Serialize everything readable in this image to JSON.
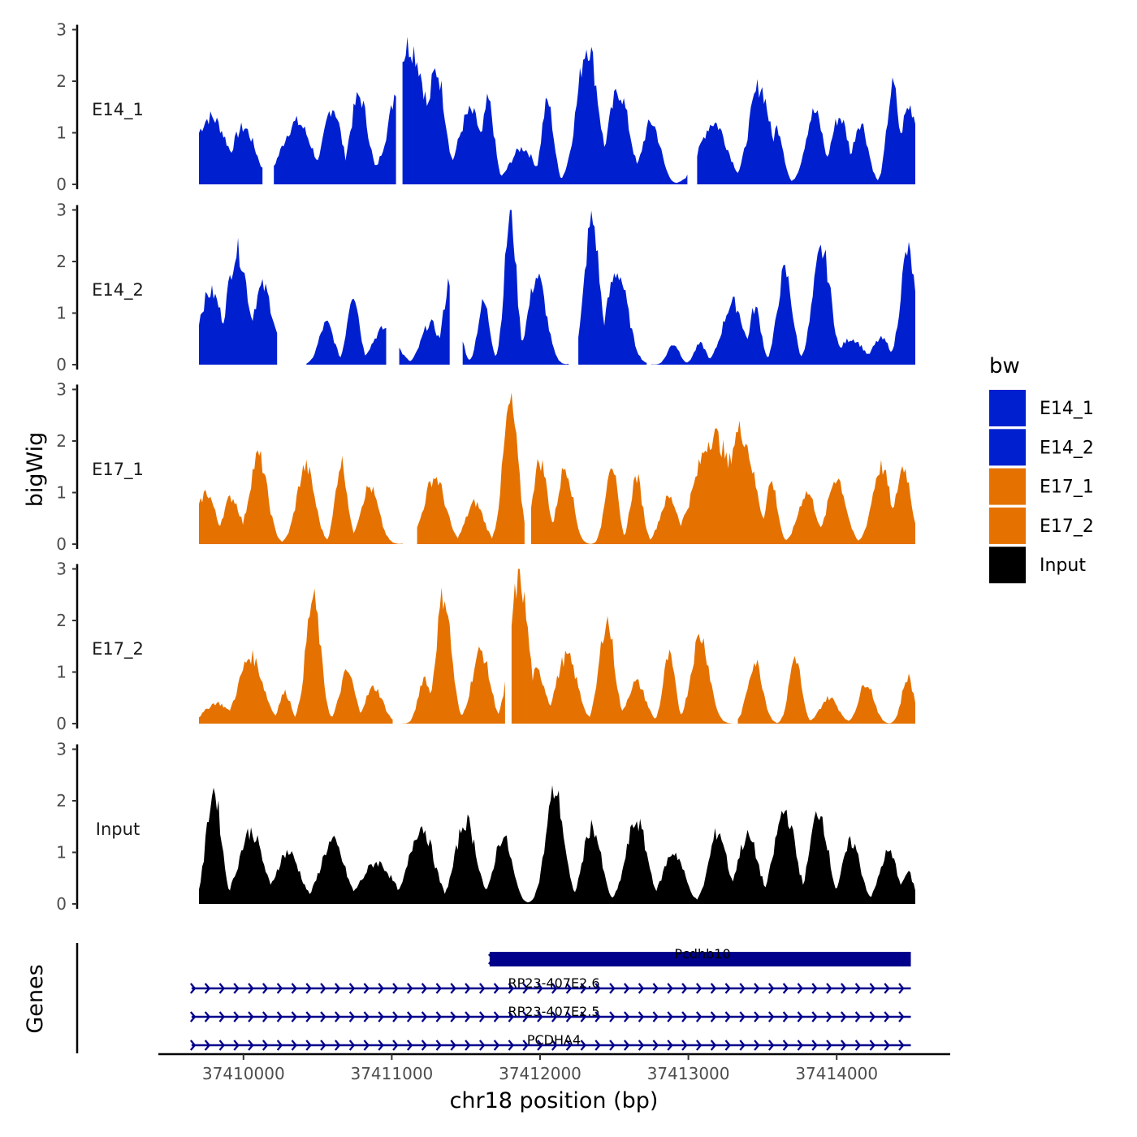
{
  "chart_data": {
    "type": "area",
    "ylabel": "bigWig",
    "xlabel": "chr18 position (bp)",
    "x_ticks": [
      "37410000",
      "37411000",
      "37412000",
      "37413000",
      "37414000"
    ],
    "x_tick_values": [
      37410000,
      37411000,
      37412000,
      37413000,
      37414000
    ],
    "xlim": [
      37409650,
      37414700
    ],
    "y_ticks": [
      "0",
      "1",
      "2",
      "3"
    ],
    "ylim": [
      0,
      3
    ],
    "x_start": 37409700,
    "x_end": 37414530,
    "tracks": [
      {
        "name": "E14_1",
        "color": "#0020D0",
        "gaps": [
          [
            37410130,
            37410200
          ],
          [
            37411030,
            37411070
          ],
          [
            37413000,
            37413050
          ]
        ],
        "peaks": [
          [
            37409780,
            1.3,
            110
          ],
          [
            37410000,
            1.1,
            80
          ],
          [
            37410360,
            1.2,
            100
          ],
          [
            37410600,
            1.5,
            60
          ],
          [
            37410780,
            1.7,
            60
          ],
          [
            37411120,
            2.7,
            110
          ],
          [
            37411300,
            2.2,
            60
          ],
          [
            37411530,
            1.4,
            80
          ],
          [
            37411650,
            1.6,
            40
          ],
          [
            37411880,
            0.7,
            80
          ],
          [
            37412050,
            1.6,
            40
          ],
          [
            37412320,
            2.7,
            70
          ],
          [
            37412530,
            1.8,
            70
          ],
          [
            37412750,
            1.2,
            60
          ],
          [
            37413170,
            1.2,
            90
          ],
          [
            37413480,
            1.9,
            70
          ],
          [
            37413600,
            1.1,
            40
          ],
          [
            37413850,
            1.4,
            60
          ],
          [
            37414020,
            1.3,
            60
          ],
          [
            37414160,
            1.2,
            50
          ],
          [
            37414380,
            1.9,
            40
          ],
          [
            37414490,
            1.5,
            60
          ]
        ]
      },
      {
        "name": "E14_2",
        "color": "#0020D0",
        "gaps": [
          [
            37410230,
            37410420
          ],
          [
            37410970,
            37411050
          ],
          [
            37411400,
            37411470
          ],
          [
            37412200,
            37412250
          ],
          [
            37412720,
            37412750
          ]
        ],
        "peaks": [
          [
            37409780,
            1.4,
            80
          ],
          [
            37409960,
            2.2,
            70
          ],
          [
            37410130,
            1.5,
            70
          ],
          [
            37410560,
            0.8,
            50
          ],
          [
            37410740,
            1.4,
            40
          ],
          [
            37410950,
            0.7,
            80
          ],
          [
            37411260,
            0.8,
            60
          ],
          [
            37411400,
            1.7,
            50
          ],
          [
            37411620,
            1.2,
            40
          ],
          [
            37411800,
            2.9,
            40
          ],
          [
            37411980,
            1.7,
            60
          ],
          [
            37412350,
            2.8,
            50
          ],
          [
            37412520,
            1.8,
            70
          ],
          [
            37412900,
            0.4,
            40
          ],
          [
            37413080,
            0.4,
            40
          ],
          [
            37413300,
            1.2,
            70
          ],
          [
            37413450,
            1.1,
            40
          ],
          [
            37413650,
            1.8,
            50
          ],
          [
            37413900,
            2.2,
            60
          ],
          [
            37414100,
            0.5,
            80
          ],
          [
            37414300,
            0.5,
            60
          ],
          [
            37414480,
            2.2,
            50
          ]
        ]
      },
      {
        "name": "E17_1",
        "color": "#E57200",
        "gaps": [
          [
            37411080,
            37411160
          ],
          [
            37411900,
            37411930
          ]
        ],
        "peaks": [
          [
            37409750,
            1.0,
            60
          ],
          [
            37409920,
            0.9,
            60
          ],
          [
            37410100,
            1.7,
            60
          ],
          [
            37410420,
            1.5,
            60
          ],
          [
            37410660,
            1.6,
            40
          ],
          [
            37410850,
            1.1,
            60
          ],
          [
            37411290,
            1.3,
            70
          ],
          [
            37411560,
            0.8,
            60
          ],
          [
            37411800,
            2.7,
            50
          ],
          [
            37412000,
            1.6,
            50
          ],
          [
            37412170,
            1.5,
            50
          ],
          [
            37412480,
            1.6,
            40
          ],
          [
            37412650,
            1.3,
            40
          ],
          [
            37412870,
            0.9,
            60
          ],
          [
            37413170,
            2.1,
            120
          ],
          [
            37413350,
            2.2,
            90
          ],
          [
            37413560,
            1.2,
            40
          ],
          [
            37413800,
            1.0,
            60
          ],
          [
            37414000,
            1.3,
            60
          ],
          [
            37414300,
            1.5,
            60
          ],
          [
            37414450,
            1.5,
            50
          ]
        ]
      },
      {
        "name": "E17_2",
        "color": "#E57200",
        "gaps": [
          [
            37411010,
            37411070
          ],
          [
            37411770,
            37411800
          ],
          [
            37413300,
            37413330
          ]
        ],
        "peaks": [
          [
            37409820,
            0.4,
            80
          ],
          [
            37410050,
            1.3,
            80
          ],
          [
            37410280,
            0.6,
            40
          ],
          [
            37410470,
            2.4,
            50
          ],
          [
            37410700,
            1.0,
            50
          ],
          [
            37410880,
            0.7,
            60
          ],
          [
            37411220,
            0.9,
            40
          ],
          [
            37411350,
            2.5,
            50
          ],
          [
            37411600,
            1.4,
            60
          ],
          [
            37411860,
            2.8,
            60
          ],
          [
            37411980,
            1.0,
            60
          ],
          [
            37412180,
            1.3,
            70
          ],
          [
            37412450,
            2.0,
            50
          ],
          [
            37412650,
            0.8,
            60
          ],
          [
            37412870,
            1.3,
            40
          ],
          [
            37413080,
            1.7,
            60
          ],
          [
            37413450,
            1.2,
            50
          ],
          [
            37413720,
            1.3,
            40
          ],
          [
            37413950,
            0.5,
            60
          ],
          [
            37414200,
            0.8,
            50
          ],
          [
            37414480,
            0.9,
            40
          ]
        ]
      },
      {
        "name": "Input",
        "color": "#000000",
        "gaps": [],
        "peaks": [
          [
            37409800,
            2.2,
            50
          ],
          [
            37410050,
            1.4,
            80
          ],
          [
            37410300,
            1.0,
            80
          ],
          [
            37410600,
            1.2,
            80
          ],
          [
            37410900,
            0.8,
            100
          ],
          [
            37411200,
            1.5,
            80
          ],
          [
            37411500,
            1.6,
            70
          ],
          [
            37411750,
            1.3,
            60
          ],
          [
            37412100,
            2.2,
            60
          ],
          [
            37412350,
            1.5,
            60
          ],
          [
            37412650,
            1.6,
            70
          ],
          [
            37412900,
            1.0,
            70
          ],
          [
            37413200,
            1.4,
            60
          ],
          [
            37413400,
            1.3,
            70
          ],
          [
            37413650,
            1.8,
            70
          ],
          [
            37413880,
            1.8,
            60
          ],
          [
            37414100,
            1.2,
            60
          ],
          [
            37414350,
            1.0,
            60
          ],
          [
            37414480,
            0.6,
            40
          ]
        ]
      }
    ],
    "genes": [
      {
        "name": "Pcdhb10",
        "start": 37411660,
        "end": 37414500,
        "thick": true
      },
      {
        "name": "RP23-407E2.6",
        "start": 37409650,
        "end": 37414500,
        "thick": false
      },
      {
        "name": "RP23-407E2.5",
        "start": 37409650,
        "end": 37414500,
        "thick": false
      },
      {
        "name": "PCDHA4",
        "start": 37409650,
        "end": 37414500,
        "thick": false
      }
    ],
    "gene_track_label": "Genes",
    "gene_color": "#00008B",
    "legend": {
      "title": "bw",
      "position": "right",
      "entries": [
        {
          "label": "E14_1",
          "color": "#0020D0"
        },
        {
          "label": "E14_2",
          "color": "#0020D0"
        },
        {
          "label": "E17_1",
          "color": "#E57200"
        },
        {
          "label": "E17_2",
          "color": "#E57200"
        },
        {
          "label": "Input",
          "color": "#000000"
        }
      ]
    }
  }
}
